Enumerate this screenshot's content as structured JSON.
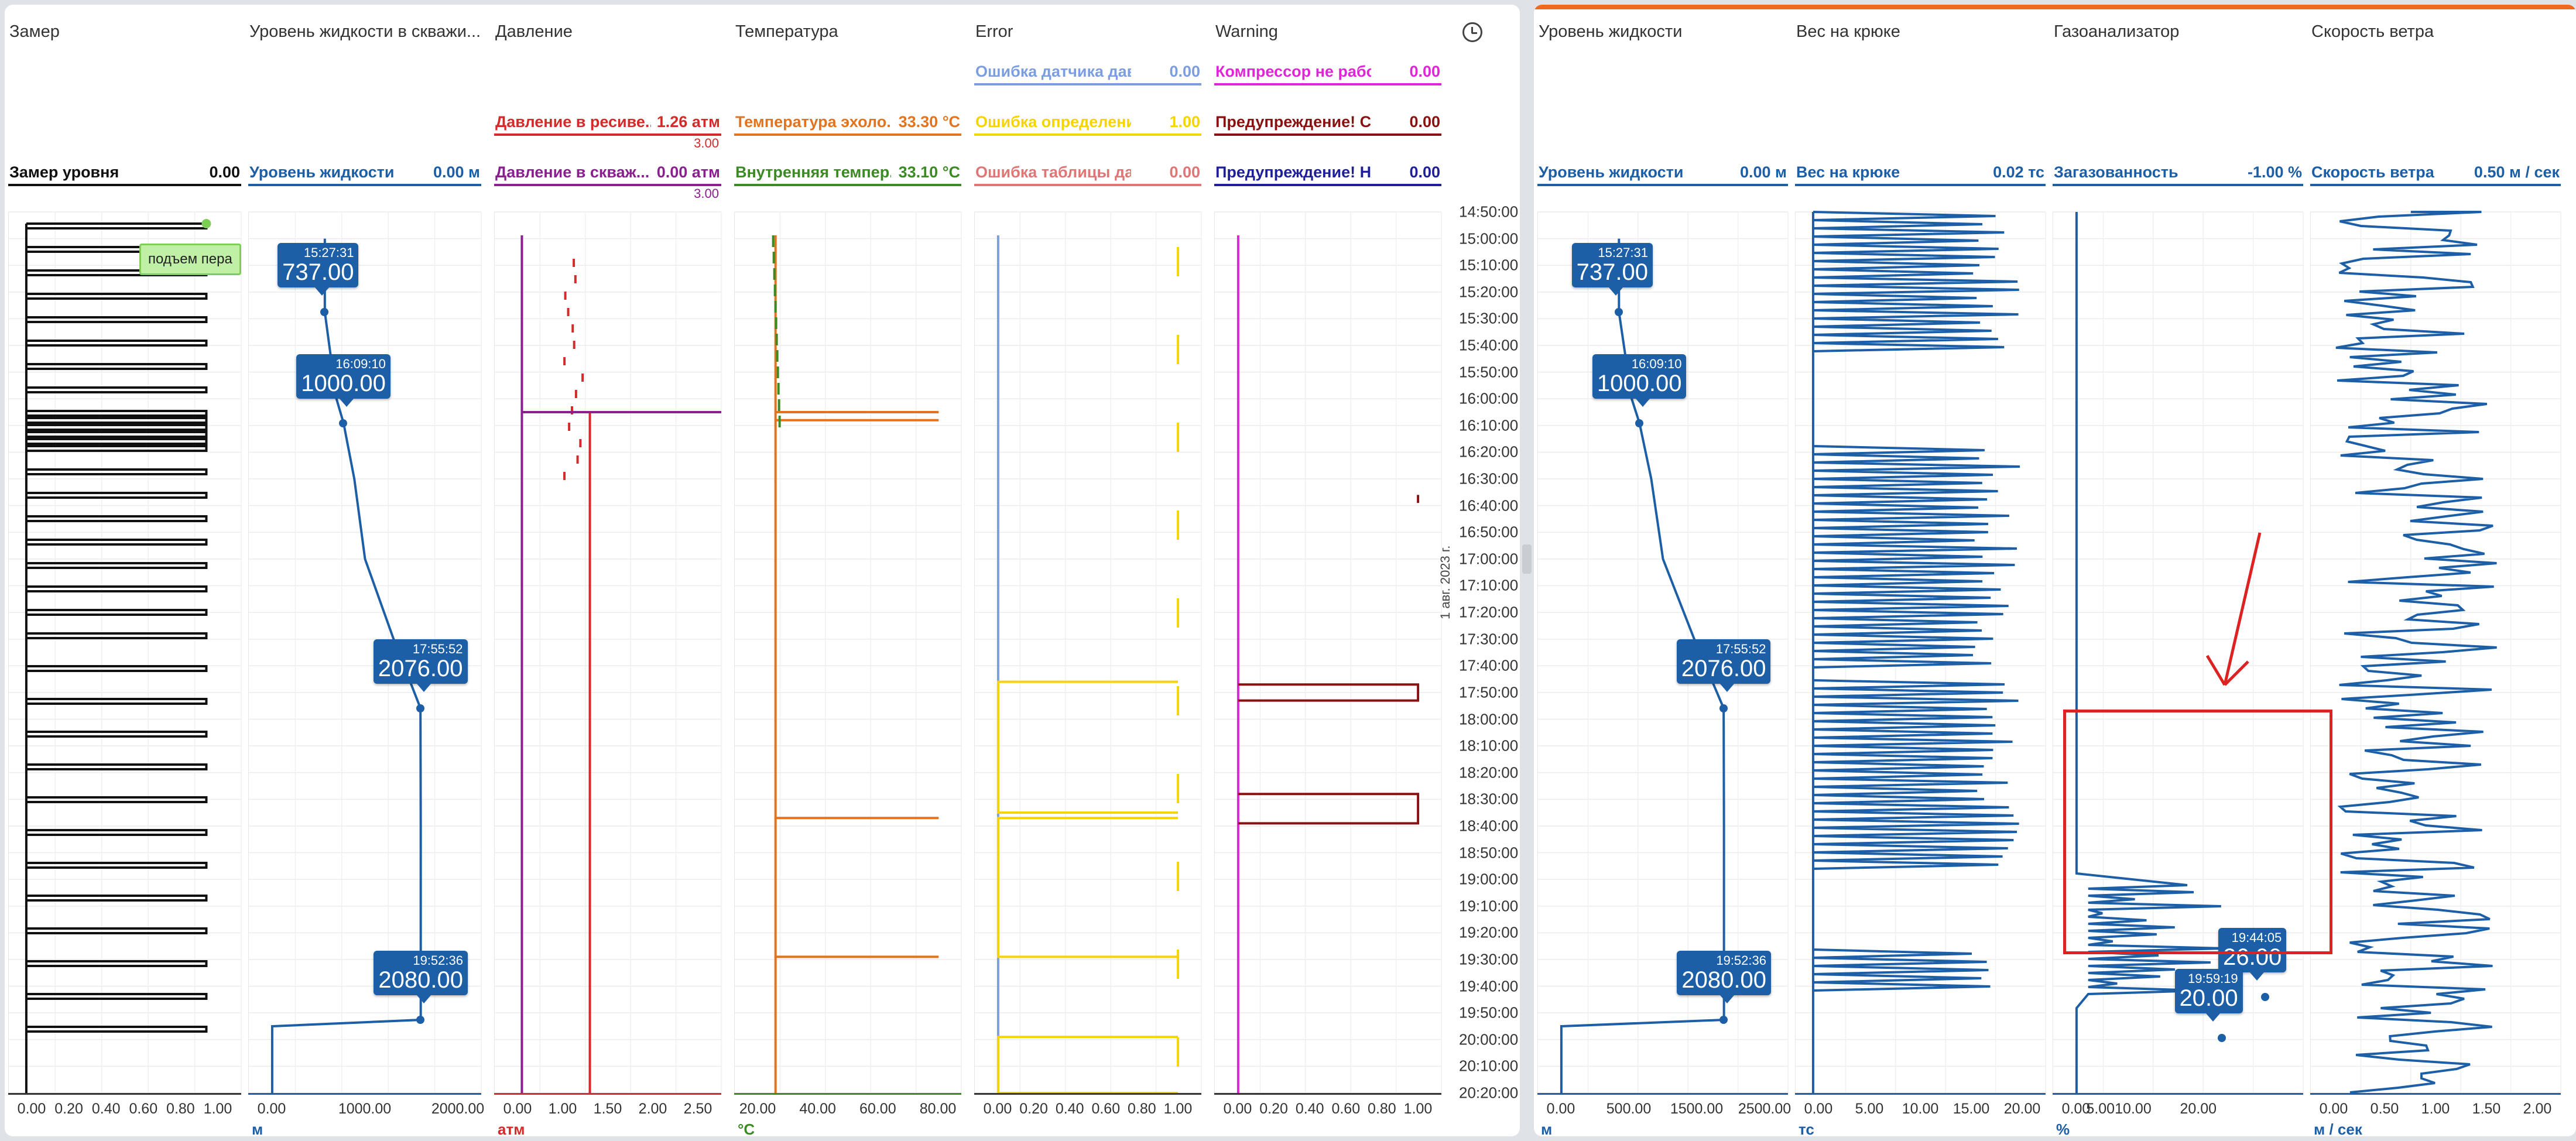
{
  "colors": {
    "blue": "#1d5fa6",
    "red": "#d42a2a",
    "purple": "#8a1f8f",
    "orange": "#e2741f",
    "green": "#3b8a24",
    "yellow": "#f5d400",
    "lightblue": "#7c9ee0",
    "magenta": "#e025d8",
    "darkred": "#8b1111",
    "pink": "#e07575",
    "navy": "#1f1f99",
    "black": "#111111"
  },
  "left_panel": {
    "columns": [
      {
        "title": "Замер",
        "legends": [
          {
            "name": "Замер уровня",
            "value": "0.00",
            "color": "#111111"
          }
        ],
        "ticks": [
          "0.00",
          "0.20",
          "0.40",
          "0.60",
          "0.80",
          "1.00"
        ],
        "unit": ""
      },
      {
        "title": "Уровень жидкости в скважи...",
        "legends": [
          {
            "name": "Уровень жидкости",
            "value": "0.00 м",
            "color": "#1d5fa6"
          }
        ],
        "ticks": [
          "0.00",
          "1000.00",
          "2000.00"
        ],
        "unit": "м"
      },
      {
        "title": "Давление",
        "legends": [
          {
            "name": "Давление в ресиве...",
            "value": "1.26 атм",
            "color": "#d42a2a",
            "max": "3.00"
          },
          {
            "name": "Давление в скваж...",
            "value": "0.00 атм",
            "color": "#8a1f8f",
            "max": "3.00"
          }
        ],
        "ticks": [
          "0.00",
          "1.00",
          "1.50",
          "2.00",
          "2.50"
        ],
        "unit": "атм"
      },
      {
        "title": "Температура",
        "legends": [
          {
            "name": "Температура эхоло...",
            "value": "33.30 °C",
            "color": "#e2741f"
          },
          {
            "name": "Внутренняя темпер...",
            "value": "33.10 °C",
            "color": "#3b8a24"
          }
        ],
        "ticks": [
          "20.00",
          "40.00",
          "60.00",
          "80.00"
        ],
        "unit": "°C"
      },
      {
        "title": "Error",
        "legends": [
          {
            "name": "Ошибка датчика давл...",
            "value": "0.00",
            "color": "#7c9ee0"
          },
          {
            "name": "Ошибка определения ...",
            "value": "1.00",
            "color": "#f5d400"
          },
          {
            "name": "Ошибка таблицы давл...",
            "value": "0.00",
            "color": "#e07575"
          }
        ],
        "ticks": [
          "0.00",
          "0.20",
          "0.40",
          "0.60",
          "0.80",
          "1.00"
        ],
        "unit": ""
      },
      {
        "title": "Warning",
        "legends": [
          {
            "name": "Компрессор не работа...",
            "value": "0.00",
            "color": "#e025d8"
          },
          {
            "name": "Предупреждение! Сил...",
            "value": "0.00",
            "color": "#8b1111"
          },
          {
            "name": "Предупреждение! Нас...",
            "value": "0.00",
            "color": "#1f1f99"
          }
        ],
        "ticks": [
          "0.00",
          "0.20",
          "0.40",
          "0.60",
          "0.80",
          "1.00"
        ],
        "unit": ""
      }
    ],
    "time_labels": [
      "14:50:00",
      "15:00:00",
      "15:10:00",
      "15:20:00",
      "15:30:00",
      "15:40:00",
      "15:50:00",
      "16:00:00",
      "16:10:00",
      "16:20:00",
      "16:30:00",
      "16:40:00",
      "16:50:00",
      "17:00:00",
      "17:10:00",
      "17:20:00",
      "17:30:00",
      "17:40:00",
      "17:50:00",
      "18:00:00",
      "18:10:00",
      "18:20:00",
      "18:30:00",
      "18:40:00",
      "18:50:00",
      "19:00:00",
      "19:10:00",
      "19:20:00",
      "19:30:00",
      "19:40:00",
      "19:50:00",
      "20:00:00",
      "20:10:00",
      "20:20:00"
    ],
    "time_date": "1 авг. 2023 г.",
    "pen_note": "подъем пера",
    "callouts": [
      {
        "time": "15:27:31",
        "value": "737.00"
      },
      {
        "time": "16:09:10",
        "value": "1000.00"
      },
      {
        "time": "17:55:52",
        "value": "2076.00"
      },
      {
        "time": "19:52:36",
        "value": "2080.00"
      }
    ]
  },
  "right_panel": {
    "columns": [
      {
        "title": "Уровень жидкости",
        "legends": [
          {
            "name": "Уровень жидкости",
            "value": "0.00 м",
            "color": "#1d5fa6"
          }
        ],
        "ticks": [
          "0.00",
          "500.00",
          "1500.00",
          "2500.00"
        ],
        "unit": "м"
      },
      {
        "title": "Вес на крюке",
        "legends": [
          {
            "name": "Вес на крюке",
            "value": "0.02 тс",
            "color": "#1d5fa6"
          }
        ],
        "ticks": [
          "0.00",
          "5.00",
          "10.00",
          "15.00",
          "20.00"
        ],
        "unit": "тс"
      },
      {
        "title": "Газоанализатор",
        "legends": [
          {
            "name": "Загазованность",
            "value": "-1.00 %",
            "color": "#1d5fa6"
          }
        ],
        "ticks": [
          "0.00",
          "5.00",
          "10.00",
          "20.00"
        ],
        "unit": "%"
      },
      {
        "title": "Скорость ветра",
        "legends": [
          {
            "name": "Скорость ветра",
            "value": "0.50 м / сек",
            "color": "#1d5fa6"
          }
        ],
        "ticks": [
          "0.00",
          "0.50",
          "1.00",
          "1.50",
          "2.00"
        ],
        "unit": "м / сек"
      }
    ],
    "level_callouts": [
      {
        "time": "15:27:31",
        "value": "737.00"
      },
      {
        "time": "16:09:10",
        "value": "1000.00"
      },
      {
        "time": "17:55:52",
        "value": "2076.00"
      },
      {
        "time": "19:52:36",
        "value": "2080.00"
      }
    ],
    "gas_callouts": [
      {
        "time": "19:44:05",
        "value": "26.00"
      },
      {
        "time": "19:59:19",
        "value": "20.00"
      }
    ]
  },
  "chart_data": {
    "type": "line",
    "orientation": "vertical-time",
    "time_range": [
      "14:50:00",
      "20:20:00"
    ],
    "series": [
      {
        "name": "Уровень жидкости",
        "unit": "м",
        "xlim": [
          0,
          2600
        ],
        "points": [
          [
            "15:00:00",
            737
          ],
          [
            "15:27:31",
            737
          ],
          [
            "16:00:00",
            900
          ],
          [
            "16:09:10",
            1000
          ],
          [
            "16:30:00",
            1150
          ],
          [
            "17:00:00",
            1300
          ],
          [
            "17:30:00",
            1700
          ],
          [
            "17:55:52",
            2076
          ],
          [
            "18:40:00",
            2080
          ],
          [
            "19:52:36",
            2080
          ],
          [
            "19:55:00",
            0
          ],
          [
            "20:20:00",
            0
          ]
        ]
      },
      {
        "name": "Загазованность",
        "unit": "%",
        "peaks": [
          {
            "time": "19:44:05",
            "value": 26.0
          },
          {
            "time": "19:59:19",
            "value": 20.0
          }
        ]
      },
      {
        "name": "Давление в ресиве...",
        "unit": "атм",
        "current": 1.26
      },
      {
        "name": "Давление в скваж...",
        "unit": "атм",
        "current": 0.0
      },
      {
        "name": "Температура эхоло...",
        "unit": "°C",
        "current": 33.3
      },
      {
        "name": "Внутренняя темпер...",
        "unit": "°C",
        "current": 33.1
      },
      {
        "name": "Вес на крюке",
        "unit": "тс",
        "current": 0.02
      },
      {
        "name": "Скорость ветра",
        "unit": "м / сек",
        "current": 0.5
      }
    ]
  }
}
